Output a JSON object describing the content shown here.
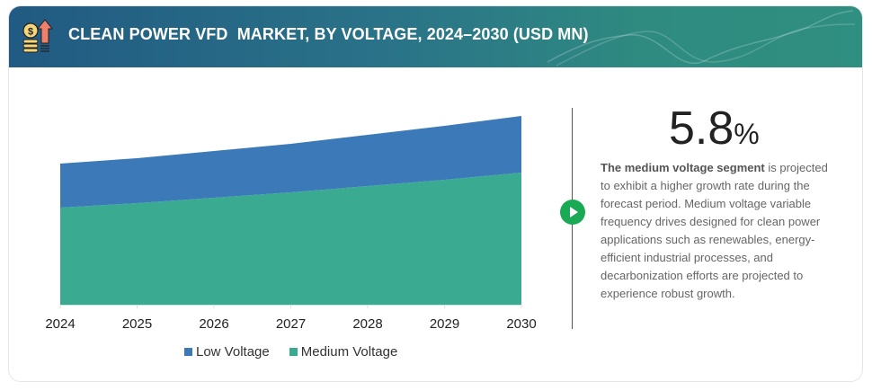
{
  "header": {
    "title": "CLEAN POWER VFD  MARKET, BY VOLTAGE, 2024–2030 (USD MN)",
    "icon": "coins-growth-arrow-icon"
  },
  "chart_data": {
    "type": "area",
    "stacked": true,
    "title": "CLEAN POWER VFD  MARKET, BY VOLTAGE, 2024–2030 (USD MN)",
    "xlabel": "",
    "ylabel": "",
    "x": [
      "2024",
      "2025",
      "2026",
      "2027",
      "2028",
      "2029",
      "2030"
    ],
    "series": [
      {
        "name": "Medium Voltage",
        "color": "#3aaa91",
        "values": [
          108,
          113,
          119,
          125,
          132,
          139,
          147
        ]
      },
      {
        "name": "Low Voltage",
        "color": "#3b79b9",
        "values": [
          49,
          50,
          52,
          54,
          57,
          60,
          63
        ]
      }
    ],
    "y_axis_shown": false,
    "values_note": "relative estimates; no y-axis values shown",
    "grid": false,
    "legend": "bottom"
  },
  "legend": [
    {
      "label": "Low Voltage",
      "color": "#3b79b9"
    },
    {
      "label": "Medium Voltage",
      "color": "#3aaa91"
    }
  ],
  "stat": {
    "value": "5.8",
    "unit": "%",
    "description_bold": "The medium voltage segment",
    "description_rest": " is projected to exhibit a higher growth rate during the forecast period. Medium voltage variable frequency drives designed for clean power applications such as renewables, energy-efficient industrial processes, and decarbonization efforts are projected to experience robust growth."
  },
  "colors": {
    "accent_green": "#1aa955",
    "header_start": "#215a82",
    "header_end": "#2f8f80"
  }
}
